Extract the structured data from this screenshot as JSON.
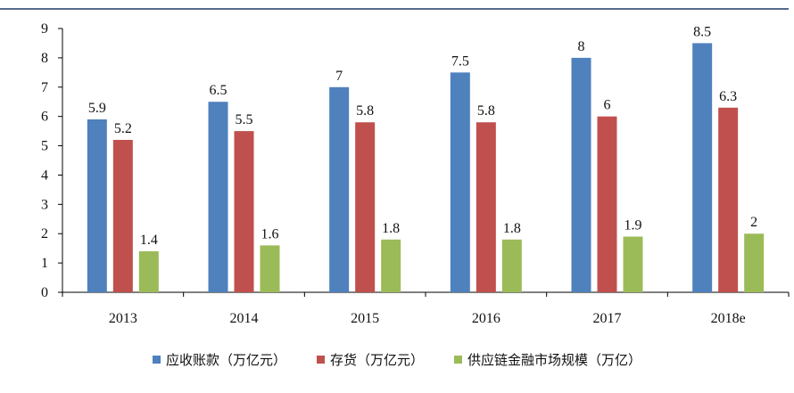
{
  "chart_data": {
    "type": "bar",
    "title": "",
    "xlabel": "",
    "ylabel": "",
    "categories": [
      "2013",
      "2014",
      "2015",
      "2016",
      "2017",
      "2018e"
    ],
    "ylim": [
      0,
      9
    ],
    "yticks": [
      0,
      1,
      2,
      3,
      4,
      5,
      6,
      7,
      8,
      9
    ],
    "grid": false,
    "legend_position": "bottom",
    "series": [
      {
        "name": "应收账款（万亿元）",
        "color": "#4F81BD",
        "values": [
          5.9,
          6.5,
          7,
          7.5,
          8,
          8.5
        ]
      },
      {
        "name": "存货（万亿元）",
        "color": "#C0504D",
        "values": [
          5.2,
          5.5,
          5.8,
          5.8,
          6,
          6.3
        ]
      },
      {
        "name": "供应链金融市场规模（万亿）",
        "color": "#9BBB59",
        "values": [
          1.4,
          1.6,
          1.8,
          1.8,
          1.9,
          2
        ]
      }
    ]
  }
}
